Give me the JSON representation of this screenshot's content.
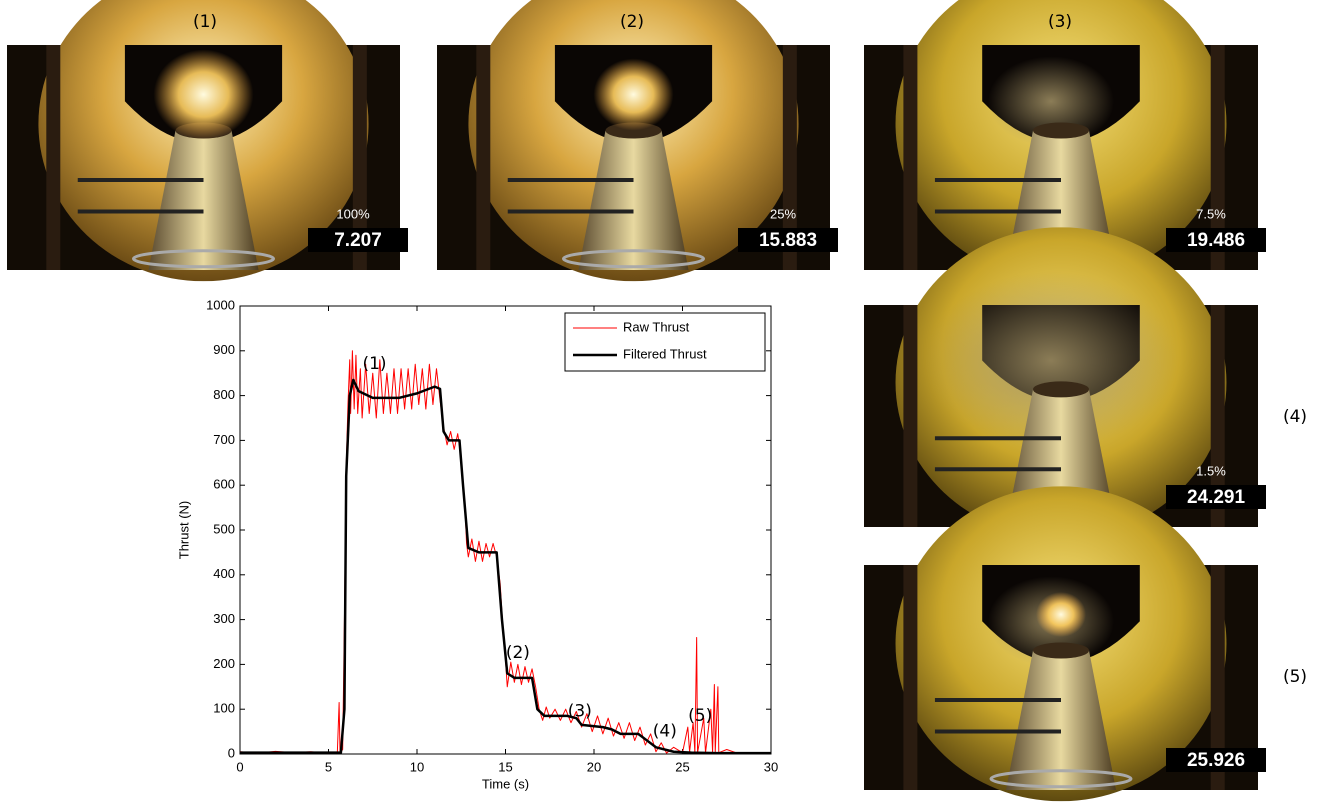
{
  "chart_data": {
    "type": "line",
    "xlabel": "Time (s)",
    "ylabel": "Thrust (N)",
    "xlim": [
      0,
      30
    ],
    "ylim": [
      0,
      1000
    ],
    "xticks": [
      0,
      5,
      10,
      15,
      20,
      25,
      30
    ],
    "yticks": [
      0,
      100,
      200,
      300,
      400,
      500,
      600,
      700,
      800,
      900,
      1000
    ],
    "legend": "upper right",
    "series": [
      {
        "name": "Raw Thrust",
        "color": "#ff0000",
        "x": [
          0,
          1,
          2,
          3,
          4,
          5,
          5.5,
          5.6,
          5.65,
          5.8,
          5.9,
          6.0,
          6.1,
          6.2,
          6.25,
          6.35,
          6.45,
          6.55,
          6.65,
          6.8,
          6.9,
          7.1,
          7.3,
          7.5,
          7.7,
          7.9,
          8.1,
          8.3,
          8.5,
          8.7,
          8.9,
          9.1,
          9.3,
          9.5,
          9.7,
          9.9,
          10.1,
          10.3,
          10.5,
          10.7,
          10.9,
          11.1,
          11.3,
          11.5,
          11.7,
          11.9,
          12.1,
          12.3,
          12.5,
          12.7,
          12.8,
          12.9,
          13.1,
          13.3,
          13.5,
          13.7,
          13.9,
          14.1,
          14.3,
          14.5,
          14.7,
          14.9,
          15.0,
          15.1,
          15.3,
          15.5,
          15.7,
          15.9,
          16.1,
          16.3,
          16.5,
          16.7,
          16.9,
          17.1,
          17.3,
          17.5,
          17.8,
          18.1,
          18.4,
          18.7,
          19.0,
          19.3,
          19.6,
          19.9,
          20.2,
          20.5,
          20.8,
          21.1,
          21.4,
          21.7,
          22.0,
          22.3,
          22.6,
          22.9,
          23.2,
          23.5,
          23.8,
          24.1,
          24.5,
          25,
          25.3,
          25.4,
          25.6,
          25.7,
          25.8,
          25.85,
          26.2,
          26.3,
          26.6,
          26.7,
          26.8,
          26.85,
          27.0,
          27.05,
          27.5,
          28,
          29,
          30
        ],
        "values": [
          5,
          2,
          6,
          3,
          5,
          2,
          4,
          115,
          3,
          10,
          300,
          640,
          780,
          880,
          760,
          900,
          770,
          890,
          760,
          860,
          750,
          870,
          760,
          850,
          750,
          880,
          760,
          850,
          760,
          860,
          760,
          860,
          770,
          860,
          770,
          870,
          780,
          860,
          770,
          870,
          780,
          860,
          790,
          730,
          690,
          720,
          680,
          715,
          660,
          560,
          470,
          440,
          480,
          430,
          475,
          430,
          470,
          440,
          470,
          440,
          380,
          250,
          210,
          150,
          205,
          160,
          200,
          155,
          195,
          160,
          190,
          150,
          100,
          75,
          105,
          80,
          100,
          75,
          100,
          70,
          95,
          60,
          90,
          50,
          85,
          45,
          80,
          40,
          70,
          35,
          70,
          30,
          60,
          20,
          45,
          5,
          25,
          2,
          15,
          3,
          60,
          5,
          70,
          3,
          260,
          3,
          80,
          3,
          100,
          3,
          155,
          5,
          150,
          3,
          10,
          3,
          2,
          2
        ]
      },
      {
        "name": "Filtered Thrust",
        "color": "#000000",
        "x": [
          0,
          5.7,
          5.9,
          6.0,
          6.2,
          6.4,
          6.7,
          7.5,
          9,
          10,
          11,
          11.3,
          11.5,
          11.8,
          12.4,
          12.6,
          12.9,
          13.5,
          14.5,
          14.8,
          15.1,
          15.5,
          16.5,
          16.8,
          17.2,
          18.5,
          19,
          19.3,
          20.5,
          21,
          21.5,
          22.5,
          23,
          23.5,
          24.5,
          25.5,
          27,
          30
        ],
        "values": [
          3,
          3,
          100,
          620,
          800,
          835,
          810,
          795,
          795,
          805,
          820,
          815,
          720,
          700,
          700,
          600,
          460,
          450,
          450,
          300,
          180,
          170,
          170,
          100,
          85,
          85,
          80,
          65,
          60,
          55,
          45,
          45,
          30,
          15,
          5,
          3,
          2,
          2
        ]
      }
    ],
    "annotations": [
      {
        "text": "(1)",
        "x": 7.6,
        "y": 870
      },
      {
        "text": "(2)",
        "x": 15.7,
        "y": 225
      },
      {
        "text": "(3)",
        "x": 19.2,
        "y": 95
      },
      {
        "text": "(4)",
        "x": 24.0,
        "y": 50
      },
      {
        "text": "(5)",
        "x": 26.0,
        "y": 85
      }
    ]
  },
  "photos": [
    {
      "label": "(1)",
      "percent": "100%",
      "time": "7.207"
    },
    {
      "label": "(2)",
      "percent": "25%",
      "time": "15.883"
    },
    {
      "label": "(3)",
      "percent": "7.5%",
      "time": "19.486"
    },
    {
      "label": "(4)",
      "percent": "1.5%",
      "time": "24.291"
    },
    {
      "label": "(5)",
      "time": "25.926"
    }
  ]
}
